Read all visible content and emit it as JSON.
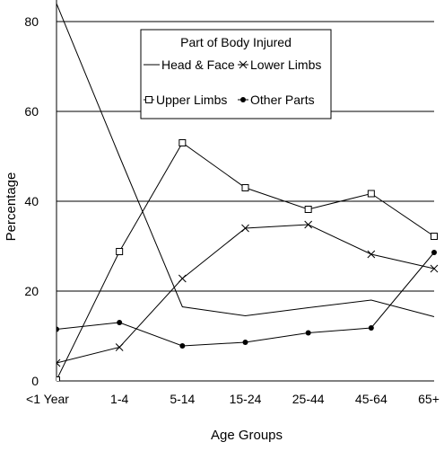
{
  "chart_data": {
    "type": "line",
    "title": "",
    "xlabel": "Age Groups",
    "ylabel": "Percentage",
    "ylim": [
      0,
      80
    ],
    "yticks": [
      0,
      20,
      40,
      60,
      80
    ],
    "grid": "horizontal",
    "categories": [
      "<1 Year",
      "1-4",
      "5-14",
      "15-24",
      "25-44",
      "45-64",
      "65+"
    ],
    "legend": {
      "title": "Part of Body Injured",
      "placement": "top-center"
    },
    "series": [
      {
        "name": "Head & Face",
        "marker": "none",
        "values": [
          84,
          50,
          16.5,
          14.5,
          16.3,
          18,
          14.3
        ]
      },
      {
        "name": "Lower Limbs",
        "marker": "x",
        "values": [
          4,
          7.5,
          22.8,
          34,
          34.8,
          28.2,
          25
        ]
      },
      {
        "name": "Upper Limbs",
        "marker": "square",
        "values": [
          0.2,
          28.8,
          53,
          43,
          38.2,
          41.7,
          32.2
        ]
      },
      {
        "name": "Other Parts",
        "marker": "dot",
        "values": [
          11.5,
          13,
          7.8,
          8.6,
          10.7,
          11.8,
          28.6
        ]
      }
    ],
    "colors": {
      "line": "#000000",
      "grid": "#000000",
      "background": "#ffffff"
    }
  }
}
